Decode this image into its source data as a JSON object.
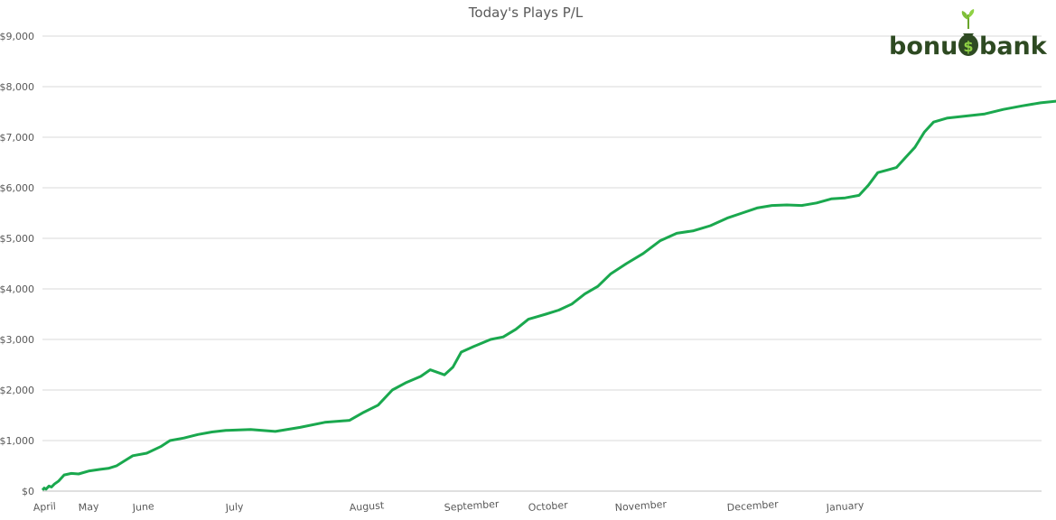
{
  "chart_data": {
    "type": "line",
    "title": "Today's Plays P/L",
    "xlabel": "",
    "ylabel": "",
    "ylim": [
      0,
      9000
    ],
    "y_ticks": [
      "$0",
      "$1,000",
      "$2,000",
      "$3,000",
      "$4,000",
      "$5,000",
      "$6,000",
      "$7,000",
      "$8,000",
      "$9,000"
    ],
    "x_ticks": [
      "April",
      "May",
      "June",
      "July",
      "August",
      "September",
      "October",
      "November",
      "December",
      "January"
    ],
    "grid": true,
    "legend": "none",
    "series": [
      {
        "color": "#1aa84e",
        "x": [
          "April",
          "May",
          "June",
          "July",
          "August",
          "September",
          "October",
          "November",
          "December",
          "January"
        ],
        "points": [
          [
            0.0,
            20
          ],
          [
            0.05,
            60
          ],
          [
            0.1,
            40
          ],
          [
            0.18,
            100
          ],
          [
            0.25,
            80
          ],
          [
            0.33,
            140
          ],
          [
            0.45,
            200
          ],
          [
            0.6,
            320
          ],
          [
            0.8,
            350
          ],
          [
            1.0,
            340
          ],
          [
            1.2,
            400
          ],
          [
            1.4,
            430
          ],
          [
            1.55,
            450
          ],
          [
            1.7,
            500
          ],
          [
            1.85,
            600
          ],
          [
            2.0,
            700
          ],
          [
            2.15,
            750
          ],
          [
            2.3,
            880
          ],
          [
            2.4,
            1000
          ],
          [
            2.55,
            1050
          ],
          [
            2.7,
            1120
          ],
          [
            2.85,
            1170
          ],
          [
            3.0,
            1200
          ],
          [
            3.2,
            1220
          ],
          [
            3.4,
            1180
          ],
          [
            3.6,
            1260
          ],
          [
            3.8,
            1360
          ],
          [
            4.0,
            1400
          ],
          [
            4.15,
            1560
          ],
          [
            4.3,
            1700
          ],
          [
            4.45,
            2000
          ],
          [
            4.6,
            2150
          ],
          [
            4.75,
            2270
          ],
          [
            4.85,
            2400
          ],
          [
            5.0,
            2300
          ],
          [
            5.1,
            2450
          ],
          [
            5.2,
            2750
          ],
          [
            5.35,
            2860
          ],
          [
            5.55,
            3000
          ],
          [
            5.7,
            3050
          ],
          [
            5.85,
            3200
          ],
          [
            6.0,
            3400
          ],
          [
            6.1,
            3450
          ],
          [
            6.2,
            3500
          ],
          [
            6.35,
            3580
          ],
          [
            6.5,
            3700
          ],
          [
            6.65,
            3900
          ],
          [
            6.8,
            4050
          ],
          [
            6.95,
            4300
          ],
          [
            7.1,
            4500
          ],
          [
            7.25,
            4700
          ],
          [
            7.4,
            4950
          ],
          [
            7.55,
            5100
          ],
          [
            7.7,
            5150
          ],
          [
            7.85,
            5250
          ],
          [
            8.0,
            5400
          ],
          [
            8.15,
            5500
          ],
          [
            8.3,
            5600
          ],
          [
            8.45,
            5650
          ],
          [
            8.6,
            5660
          ],
          [
            8.75,
            5650
          ],
          [
            8.9,
            5700
          ],
          [
            9.05,
            5780
          ],
          [
            9.2,
            5800
          ],
          [
            9.35,
            5850
          ],
          [
            9.45,
            6050
          ],
          [
            9.55,
            6300
          ],
          [
            9.65,
            6350
          ],
          [
            9.75,
            6400
          ],
          [
            9.85,
            6600
          ],
          [
            9.95,
            6800
          ],
          [
            10.05,
            7100
          ],
          [
            10.15,
            7300
          ],
          [
            10.3,
            7380
          ],
          [
            10.5,
            7420
          ],
          [
            10.7,
            7460
          ],
          [
            10.9,
            7550
          ],
          [
            11.1,
            7620
          ],
          [
            11.3,
            7680
          ],
          [
            11.5,
            7720
          ],
          [
            11.7,
            7830
          ],
          [
            11.85,
            7950
          ],
          [
            12.0,
            8050
          ],
          [
            12.1,
            8070
          ]
        ]
      }
    ]
  },
  "logo": {
    "text": "bonu$bank"
  }
}
